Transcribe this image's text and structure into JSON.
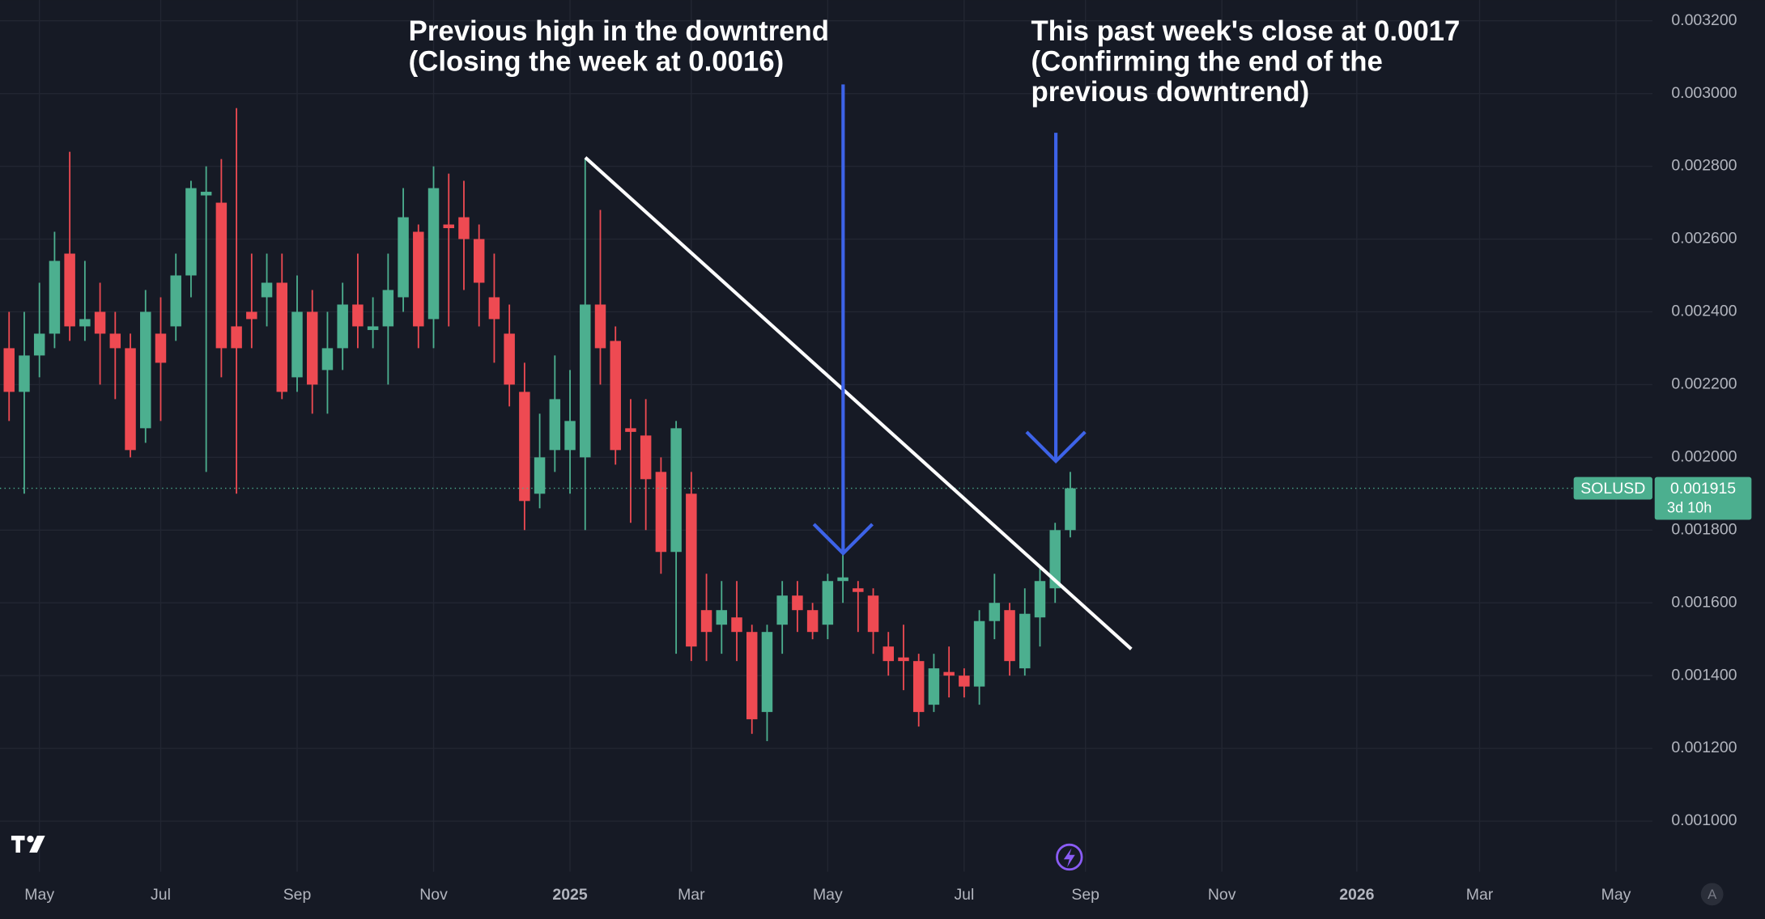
{
  "chart_data": {
    "type": "candlestick",
    "symbol": "SOLUSD",
    "countdown": "3d 10h",
    "last_price": 0.001915,
    "up_color": "#4caf8f",
    "down_color": "#ee4a52",
    "annotations": [
      {
        "lines": [
          "Previous high in the downtrend",
          "(Closing the week at 0.0016)"
        ]
      },
      {
        "lines": [
          "This past week's close at 0.0017",
          "(Confirming the end of the",
          "previous downtrend)"
        ]
      }
    ],
    "x": [
      0,
      1,
      2,
      3,
      4,
      5,
      6,
      7,
      8,
      9,
      10,
      11,
      12,
      13,
      14,
      15,
      16,
      17,
      18,
      19,
      20,
      21,
      22,
      23,
      24,
      25,
      26,
      27,
      28,
      29,
      30,
      31,
      32,
      33,
      34,
      35,
      36,
      37,
      38,
      39,
      40,
      41,
      42,
      43,
      44,
      45,
      46,
      47,
      48,
      49,
      50,
      51,
      52,
      53,
      54,
      55,
      56,
      57,
      58,
      59,
      60,
      61,
      62,
      63,
      64,
      65,
      66,
      67,
      68,
      69,
      70
    ],
    "open": [
      0.0023,
      0.00218,
      0.00228,
      0.00234,
      0.00256,
      0.00236,
      0.0024,
      0.00234,
      0.0023,
      0.00208,
      0.00234,
      0.00236,
      0.0025,
      0.00272,
      0.0027,
      0.00236,
      0.0024,
      0.00244,
      0.00248,
      0.00222,
      0.0024,
      0.00224,
      0.0023,
      0.00242,
      0.00235,
      0.00236,
      0.00244,
      0.00262,
      0.00238,
      0.00264,
      0.00266,
      0.0026,
      0.00244,
      0.00234,
      0.00218,
      0.0019,
      0.00202,
      0.00202,
      0.002,
      0.00242,
      0.00232,
      0.00208,
      0.00206,
      0.00196,
      0.00174,
      0.0019,
      0.00158,
      0.00154,
      0.00156,
      0.00152,
      0.0013,
      0.00154,
      0.00162,
      0.00158,
      0.00154,
      0.00166,
      0.00164,
      0.00162,
      0.00148,
      0.00145,
      0.00144,
      0.00132,
      0.00141,
      0.0014,
      0.00137,
      0.00155,
      0.00158,
      0.00142,
      0.00156,
      0.00164,
      0.0018
    ],
    "high": [
      0.0024,
      0.0024,
      0.00248,
      0.00262,
      0.00284,
      0.00254,
      0.00248,
      0.0024,
      0.00234,
      0.00246,
      0.00244,
      0.00256,
      0.00276,
      0.0028,
      0.00282,
      0.00296,
      0.00256,
      0.00256,
      0.00256,
      0.0025,
      0.00246,
      0.0024,
      0.00248,
      0.00256,
      0.00244,
      0.00256,
      0.00274,
      0.00264,
      0.0028,
      0.00278,
      0.00276,
      0.00264,
      0.00256,
      0.00242,
      0.00226,
      0.00212,
      0.00228,
      0.00224,
      0.00282,
      0.00268,
      0.00236,
      0.00216,
      0.00216,
      0.002,
      0.0021,
      0.00196,
      0.00168,
      0.00166,
      0.00166,
      0.00154,
      0.00154,
      0.00166,
      0.00166,
      0.0016,
      0.00168,
      0.00174,
      0.00166,
      0.00164,
      0.00152,
      0.00154,
      0.00146,
      0.00146,
      0.00148,
      0.00142,
      0.00158,
      0.00168,
      0.0016,
      0.00164,
      0.0017,
      0.00182,
      0.00196
    ],
    "low": [
      0.0021,
      0.0019,
      0.00222,
      0.0023,
      0.00232,
      0.00232,
      0.0022,
      0.00216,
      0.002,
      0.00204,
      0.0021,
      0.00232,
      0.00244,
      0.00196,
      0.00222,
      0.0019,
      0.0023,
      0.00236,
      0.00216,
      0.00218,
      0.00212,
      0.00212,
      0.00224,
      0.0023,
      0.0023,
      0.0022,
      0.0024,
      0.0023,
      0.0023,
      0.00236,
      0.00246,
      0.00236,
      0.00226,
      0.00214,
      0.0018,
      0.00186,
      0.00196,
      0.0019,
      0.0018,
      0.0022,
      0.00198,
      0.00182,
      0.0018,
      0.00168,
      0.00146,
      0.00144,
      0.00144,
      0.00146,
      0.00144,
      0.00124,
      0.00122,
      0.00146,
      0.00152,
      0.0015,
      0.0015,
      0.0016,
      0.00152,
      0.00146,
      0.0014,
      0.00136,
      0.00126,
      0.0013,
      0.00134,
      0.00134,
      0.00132,
      0.0015,
      0.0014,
      0.0014,
      0.00148,
      0.0016,
      0.00178
    ],
    "close": [
      0.00218,
      0.00228,
      0.00234,
      0.00254,
      0.00236,
      0.00238,
      0.00234,
      0.0023,
      0.00202,
      0.0024,
      0.00226,
      0.0025,
      0.00274,
      0.00273,
      0.0023,
      0.0023,
      0.00238,
      0.00248,
      0.00218,
      0.0024,
      0.0022,
      0.0023,
      0.00242,
      0.00236,
      0.00236,
      0.00246,
      0.00266,
      0.00236,
      0.00274,
      0.00263,
      0.0026,
      0.00248,
      0.00238,
      0.0022,
      0.00188,
      0.002,
      0.00216,
      0.0021,
      0.00242,
      0.0023,
      0.00202,
      0.00207,
      0.00194,
      0.00174,
      0.00208,
      0.00148,
      0.00152,
      0.00158,
      0.00152,
      0.00128,
      0.00152,
      0.00162,
      0.00158,
      0.00152,
      0.00166,
      0.00167,
      0.00163,
      0.00152,
      0.00144,
      0.00144,
      0.0013,
      0.00142,
      0.0014,
      0.00137,
      0.00155,
      0.0016,
      0.00144,
      0.00157,
      0.00166,
      0.0018,
      0.001915
    ],
    "xlim": [
      -0.6,
      108.4
    ],
    "xticks": [
      {
        "value": 2,
        "label": "May"
      },
      {
        "value": 10,
        "label": "Jul"
      },
      {
        "value": 19,
        "label": "Sep"
      },
      {
        "value": 28,
        "label": "Nov"
      },
      {
        "value": 37,
        "label": "2025"
      },
      {
        "value": 45,
        "label": "Mar"
      },
      {
        "value": 54,
        "label": "May"
      },
      {
        "value": 63,
        "label": "Jul"
      },
      {
        "value": 71,
        "label": "Sep"
      },
      {
        "value": 80,
        "label": "Nov"
      },
      {
        "value": 88.9,
        "label": "2026"
      },
      {
        "value": 97,
        "label": "Mar"
      },
      {
        "value": 106,
        "label": "May"
      }
    ],
    "ylim": [
      0.000861,
      0.003257
    ],
    "yticks": [
      {
        "value": 0.001,
        "label": "0.001000"
      },
      {
        "value": 0.0012,
        "label": "0.001200"
      },
      {
        "value": 0.0014,
        "label": "0.001400"
      },
      {
        "value": 0.0016,
        "label": "0.001600"
      },
      {
        "value": 0.0018,
        "label": "0.001800"
      },
      {
        "value": 0.002,
        "label": "0.002000"
      },
      {
        "value": 0.0022,
        "label": "0.002200"
      },
      {
        "value": 0.0024,
        "label": "0.002400"
      },
      {
        "value": 0.0026,
        "label": "0.002600"
      },
      {
        "value": 0.0028,
        "label": "0.002800"
      },
      {
        "value": 0.003,
        "label": "0.003000"
      },
      {
        "value": 0.0032,
        "label": "0.003200"
      }
    ],
    "grid": true
  }
}
